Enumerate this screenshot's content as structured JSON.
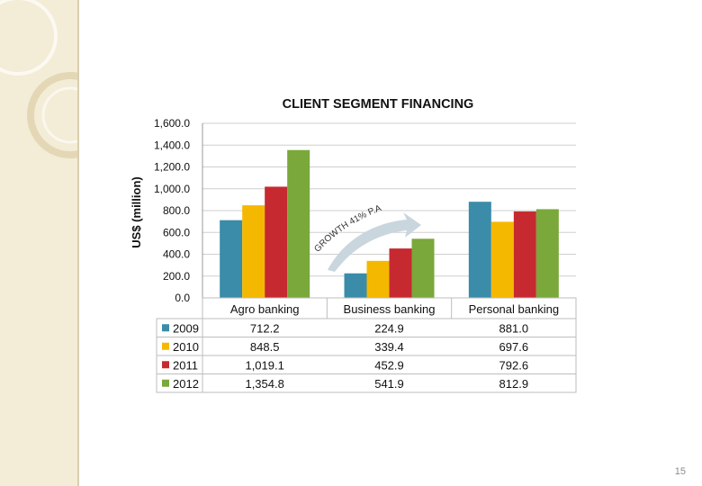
{
  "page_number": "15",
  "growth_note": "GROWTH 41% P.A",
  "colors": {
    "2009": "#3a8ca8",
    "2010": "#f5b800",
    "2011": "#c62a30",
    "2012": "#7aa83a",
    "arrow": "#c9d6de",
    "grid": "#cfcfcf",
    "sidebar": "#f3ecd6"
  },
  "chart_data": {
    "type": "bar",
    "title": "CLIENT SEGMENT FINANCING",
    "ylabel": "US$ (million)",
    "xlabel": "",
    "ylim": [
      0,
      1600
    ],
    "yticks": [
      "0.0",
      "200.0",
      "400.0",
      "600.0",
      "800.0",
      "1,000.0",
      "1,200.0",
      "1,400.0",
      "1,600.0"
    ],
    "categories": [
      "Agro banking",
      "Business banking",
      "Personal banking"
    ],
    "grid": true,
    "legend": "data-table",
    "series": [
      {
        "name": "2009",
        "values": [
          712.2,
          224.9,
          881.0
        ],
        "labels": [
          "712.2",
          "224.9",
          "881.0"
        ]
      },
      {
        "name": "2010",
        "values": [
          848.5,
          339.4,
          697.6
        ],
        "labels": [
          "848.5",
          "339.4",
          "697.6"
        ]
      },
      {
        "name": "2011",
        "values": [
          1019.1,
          452.9,
          792.6
        ],
        "labels": [
          "1,019.1",
          "452.9",
          "792.6"
        ]
      },
      {
        "name": "2012",
        "values": [
          1354.8,
          541.9,
          812.9
        ],
        "labels": [
          "1,354.8",
          "541.9",
          "812.9"
        ]
      }
    ]
  }
}
